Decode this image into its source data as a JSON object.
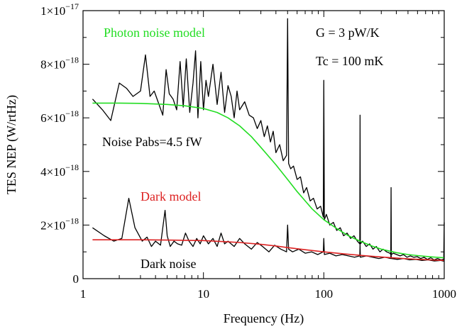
{
  "chart_data": {
    "type": "line",
    "xlabel": "Frequency (Hz)",
    "ylabel": "TES NEP (W/rtHz)",
    "x_scale": "log",
    "xlim": [
      1,
      1000
    ],
    "ylim": [
      0,
      1e-17
    ],
    "x_ticks": [
      {
        "value": 1,
        "label": "1"
      },
      {
        "value": 10,
        "label": "10"
      },
      {
        "value": 100,
        "label": "100"
      },
      {
        "value": 1000,
        "label": "1000"
      }
    ],
    "y_ticks": [
      {
        "value": 0,
        "mant": "0",
        "exp": ""
      },
      {
        "value": 2e-18,
        "mant": "2×10",
        "exp": "−18"
      },
      {
        "value": 4e-18,
        "mant": "4×10",
        "exp": "−18"
      },
      {
        "value": 6e-18,
        "mant": "6×10",
        "exp": "−18"
      },
      {
        "value": 8e-18,
        "mant": "8×10",
        "exp": "−18"
      },
      {
        "value": 1e-17,
        "mant": "1×10",
        "exp": "−17"
      }
    ],
    "annotations": [
      {
        "text": "Photon noise model",
        "color": "#22dd22"
      },
      {
        "text": "G = 3 pW/K",
        "color": "#000000"
      },
      {
        "text": "Tc = 100 mK",
        "color": "#000000"
      },
      {
        "text": "Noise Pabs=4.5 fW",
        "color": "#000000"
      },
      {
        "text": "Dark model",
        "color": "#dd2222"
      },
      {
        "text": "Dark noise",
        "color": "#000000"
      }
    ],
    "series": [
      {
        "color": "#000000",
        "x": [
          1.2,
          1.45,
          1.7,
          2.0,
          2.3,
          2.6,
          3.0,
          3.3,
          3.6,
          3.9,
          4.2,
          4.6,
          4.9,
          5.2,
          5.6,
          6.0,
          6.4,
          6.8,
          7.2,
          7.7,
          8.2,
          8.6,
          9.0,
          9.5,
          10.0,
          10.5,
          11,
          12,
          13,
          14,
          15,
          16,
          17,
          18,
          19,
          20,
          22,
          24,
          26,
          28,
          30,
          32,
          34,
          36,
          38,
          40,
          43,
          46,
          49,
          50,
          51,
          53,
          56,
          60,
          64,
          68,
          72,
          77,
          82,
          88,
          94,
          99,
          100,
          101,
          105,
          112,
          120,
          128,
          137,
          146,
          156,
          167,
          178,
          190,
          199,
          200,
          201,
          210,
          225,
          240,
          256,
          273,
          292,
          311,
          332,
          354,
          360,
          362,
          364,
          378,
          403,
          430,
          459,
          490,
          523,
          558,
          596,
          636,
          679,
          724,
          773,
          825,
          880,
          939,
          990,
          1000
        ],
        "y": [
          6.7e-18,
          6.3e-18,
          5.9e-18,
          7.3e-18,
          7.1e-18,
          6.8e-18,
          7e-18,
          8.35e-18,
          6.8e-18,
          7e-18,
          6.6e-18,
          6.1e-18,
          7.8e-18,
          6.9e-18,
          6.7e-18,
          6.3e-18,
          8.1e-18,
          6.4e-18,
          8.2e-18,
          6.2e-18,
          7.3e-18,
          8.5e-18,
          6e-18,
          8.1e-18,
          6.3e-18,
          7.4e-18,
          6.8e-18,
          8e-18,
          6.5e-18,
          7.7e-18,
          6.2e-18,
          7.2e-18,
          6.8e-18,
          6e-18,
          7e-18,
          6.3e-18,
          6.6e-18,
          6.1e-18,
          6e-18,
          5.6e-18,
          5.9e-18,
          5.3e-18,
          5.7e-18,
          5.1e-18,
          5.5e-18,
          4.7e-18,
          5e-18,
          4.4e-18,
          4.6e-18,
          9.7e-18,
          4.3e-18,
          4.1e-18,
          4.2e-18,
          3.7e-18,
          3.8e-18,
          3.2e-18,
          3.4e-18,
          2.9e-18,
          3e-18,
          2.6e-18,
          2.7e-18,
          2.3e-18,
          7.4e-18,
          2.2e-18,
          2.4e-18,
          2e-18,
          2.1e-18,
          1.8e-18,
          1.9e-18,
          1.6e-18,
          1.7e-18,
          1.5e-18,
          1.6e-18,
          1.4e-18,
          1.3e-18,
          6.1e-18,
          1.3e-18,
          1.4e-18,
          1.2e-18,
          1.3e-18,
          1.1e-18,
          1.2e-18,
          1e-18,
          1.1e-18,
          1e-18,
          9.5e-19,
          9e-19,
          3.4e-18,
          9e-19,
          9.5e-19,
          9e-19,
          8.5e-19,
          9e-19,
          8e-19,
          8.5e-19,
          8e-19,
          8.2e-19,
          7.5e-19,
          8e-19,
          7.2e-19,
          7.8e-19,
          7e-19,
          7.5e-19,
          7e-19,
          7.2e-19,
          2.1e-18
        ]
      },
      {
        "color": "#000000",
        "x": [
          1.2,
          1.5,
          1.8,
          2.1,
          2.4,
          2.7,
          3.1,
          3.4,
          3.7,
          4.0,
          4.4,
          4.8,
          5.0,
          5.3,
          5.7,
          6.1,
          6.6,
          7.1,
          7.6,
          8.2,
          8.8,
          9.4,
          10.0,
          11,
          12,
          13,
          14,
          15,
          16,
          18,
          20,
          22,
          25,
          28,
          31,
          35,
          39,
          44,
          49,
          50,
          51,
          55,
          62,
          70,
          79,
          89,
          99,
          100,
          101,
          112,
          126,
          142,
          160,
          180,
          199,
          200,
          201,
          226,
          254,
          286,
          322,
          360,
          362,
          364,
          408,
          459,
          516,
          581,
          654,
          736,
          828,
          932,
          990,
          1000
        ],
        "y": [
          1.9e-18,
          1.6e-18,
          1.4e-18,
          1.5e-18,
          3e-18,
          1.9e-18,
          1.4e-18,
          1.55e-18,
          1.2e-18,
          1.4e-18,
          1.25e-18,
          2.55e-18,
          1.6e-18,
          1.2e-18,
          1.4e-18,
          1.3e-18,
          1.25e-18,
          1.7e-18,
          1.4e-18,
          1.2e-18,
          1.5e-18,
          1.3e-18,
          1.6e-18,
          1.3e-18,
          1.5e-18,
          1.2e-18,
          1.7e-18,
          1.3e-18,
          1.4e-18,
          1.2e-18,
          1.5e-18,
          1.3e-18,
          1.1e-18,
          1.35e-18,
          1.2e-18,
          1e-18,
          1.25e-18,
          1.1e-18,
          1e-18,
          2e-18,
          1.1e-18,
          1e-18,
          1.1e-18,
          9.5e-19,
          1e-18,
          9e-19,
          1e-18,
          1.5e-18,
          9e-19,
          9.5e-19,
          8.5e-19,
          9e-19,
          8.5e-19,
          8e-19,
          8.5e-19,
          1.3e-18,
          8e-19,
          8.5e-19,
          8e-19,
          7.5e-19,
          8e-19,
          7.5e-19,
          1e-18,
          7.5e-19,
          7.2e-19,
          7.5e-19,
          7e-19,
          7.2e-19,
          6.8e-19,
          7e-19,
          6.6e-19,
          6.8e-19,
          6.5e-19,
          8e-19
        ]
      },
      {
        "color": "#22dd22",
        "x": [
          1.2,
          2,
          3,
          5,
          7,
          10,
          13,
          16,
          20,
          25,
          30,
          35,
          40,
          50,
          60,
          70,
          80,
          100,
          130,
          160,
          200,
          250,
          300,
          400,
          500,
          600,
          700,
          800,
          1000
        ],
        "y": [
          6.55e-18,
          6.55e-18,
          6.54e-18,
          6.5e-18,
          6.45e-18,
          6.35e-18,
          6.2e-18,
          6e-18,
          5.7e-18,
          5.3e-18,
          4.9e-18,
          4.55e-18,
          4.25e-18,
          3.7e-18,
          3.25e-18,
          2.9e-18,
          2.6e-18,
          2.2e-18,
          1.85e-18,
          1.6e-18,
          1.4e-18,
          1.22e-18,
          1.1e-18,
          9.7e-19,
          9e-19,
          8.6e-19,
          8.3e-19,
          8.1e-19,
          7.8e-19
        ]
      },
      {
        "color": "#dd2222",
        "x": [
          1.2,
          2,
          3,
          5,
          7,
          10,
          15,
          20,
          30,
          40,
          50,
          70,
          100,
          150,
          200,
          300,
          400,
          500,
          700,
          1000
        ],
        "y": [
          1.45e-18,
          1.45e-18,
          1.45e-18,
          1.44e-18,
          1.43e-18,
          1.42e-18,
          1.38e-18,
          1.35e-18,
          1.28e-18,
          1.22e-18,
          1.16e-18,
          1.08e-18,
          1e-18,
          9.2e-19,
          8.7e-19,
          8.1e-19,
          7.7e-19,
          7.4e-19,
          7.1e-19,
          6.8e-19
        ]
      }
    ]
  }
}
